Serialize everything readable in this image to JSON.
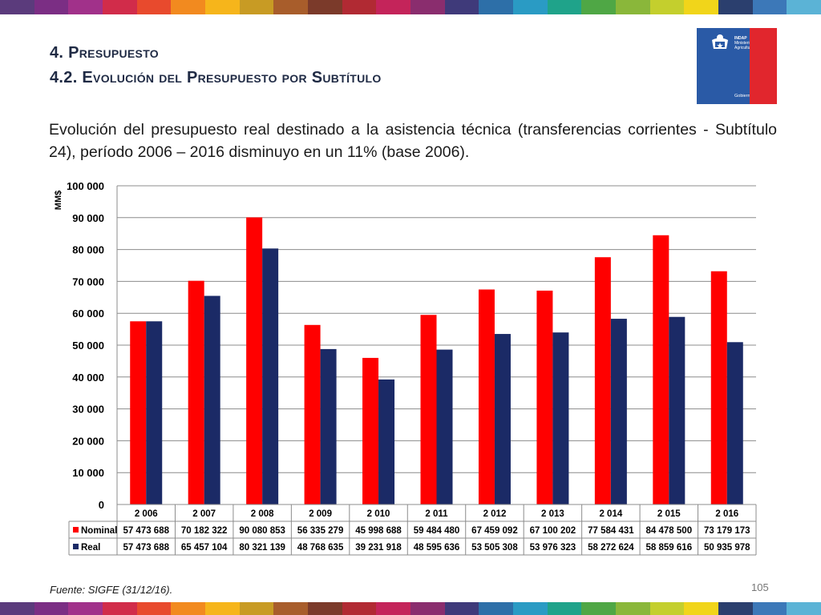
{
  "header": {
    "title_line1": "4. Presupuesto",
    "title_line2": "4.2. Evolución del Presupuesto por Subtítulo"
  },
  "logo": {
    "line1": "INDAP",
    "line2": "Ministerio de",
    "line3": "Agricultura",
    "gobierno": "Gobierno de Chile"
  },
  "description": "Evolución del presupuesto real destinado a la asistencia técnica (transferencias corrientes - Subtítulo 24), período 2006 – 2016 disminuyo en un 11% (base 2006).",
  "stripe_colors": [
    "#5b3b7c",
    "#7b2e84",
    "#a1318a",
    "#d12c4a",
    "#e84a2d",
    "#f28a1f",
    "#f6b51b",
    "#c89b24",
    "#a85d2b",
    "#7b3a2a",
    "#b12a33",
    "#c4245a",
    "#8a2d6e",
    "#3f3a7a",
    "#2d6fa8",
    "#2a9bc4",
    "#1fa38a",
    "#4fa745",
    "#8ab73a",
    "#c4cf2d",
    "#f1d51a",
    "#2b3f6e",
    "#3c78b8",
    "#5bb3d6"
  ],
  "chart_data": {
    "type": "bar",
    "ylabel": "MM$",
    "ylim": [
      0,
      100000
    ],
    "yticks": [
      "0",
      "10 000",
      "20 000",
      "30 000",
      "40 000",
      "50 000",
      "60 000",
      "70 000",
      "80 000",
      "90 000",
      "100 000"
    ],
    "categories": [
      "2 006",
      "2 007",
      "2 008",
      "2 009",
      "2 010",
      "2 011",
      "2 012",
      "2 013",
      "2 014",
      "2 015",
      "2 016"
    ],
    "series": [
      {
        "name": "Nominal",
        "color": "#ff0000",
        "values": [
          57473688,
          70182322,
          90080853,
          56335279,
          45998688,
          59484480,
          67459092,
          67100202,
          77584431,
          84478500,
          73179173
        ],
        "labels": [
          "57 473 688",
          "70 182 322",
          "90 080 853",
          "56 335 279",
          "45 998 688",
          "59 484 480",
          "67 459 092",
          "67 100 202",
          "77 584 431",
          "84 478 500",
          "73 179 173"
        ]
      },
      {
        "name": "Real",
        "color": "#1b2a66",
        "values": [
          57473688,
          65457104,
          80321139,
          48768635,
          39231918,
          48595636,
          53505308,
          53976323,
          58272624,
          58859616,
          50935978
        ],
        "labels": [
          "57 473 688",
          "65 457 104",
          "80 321 139",
          "48 768 635",
          "39 231 918",
          "48 595 636",
          "53 505 308",
          "53 976 323",
          "58 272 624",
          "58 859 616",
          "50 935 978"
        ]
      }
    ],
    "grid": true,
    "legend": "data-table"
  },
  "footer": {
    "source": "Fuente: SIGFE (31/12/16).",
    "page": "105"
  }
}
